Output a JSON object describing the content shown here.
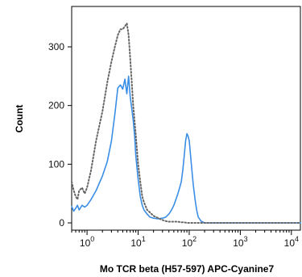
{
  "chart_data": {
    "type": "line",
    "title": "",
    "xlabel": "Mo TCR beta (H57-597) APC-Cyanine7",
    "ylabel": "Count",
    "x_scale": "log",
    "xlim": [
      0.5,
      15000
    ],
    "ylim": [
      0,
      360
    ],
    "x_ticks": [
      {
        "value": 1,
        "base": "10",
        "exp": "0"
      },
      {
        "value": 10,
        "base": "10",
        "exp": "1"
      },
      {
        "value": 100,
        "base": "10",
        "exp": "2"
      },
      {
        "value": 1000,
        "base": "10",
        "exp": "3"
      },
      {
        "value": 10000,
        "base": "10",
        "exp": "4"
      }
    ],
    "y_ticks": [
      "0",
      "100",
      "200",
      "300"
    ],
    "grid": false,
    "series": [
      {
        "style": "solid",
        "color": "#3a8ee6",
        "x": [
          0.5,
          0.55,
          0.6,
          0.65,
          0.7,
          0.8,
          0.9,
          1.0,
          1.2,
          1.5,
          2.0,
          2.5,
          3.0,
          3.5,
          4.0,
          4.5,
          5.0,
          5.5,
          6.0,
          6.5,
          7.0,
          7.5,
          8.0,
          8.5,
          9.0,
          10,
          11,
          12,
          13,
          15,
          17,
          20,
          25,
          30,
          35,
          40,
          45,
          50,
          55,
          60,
          65,
          70,
          75,
          80,
          85,
          90,
          95,
          100,
          105,
          110,
          115,
          120,
          130,
          140,
          150,
          170,
          200,
          250,
          15000
        ],
        "y": [
          28,
          20,
          25,
          30,
          22,
          30,
          27,
          30,
          40,
          55,
          80,
          105,
          140,
          185,
          230,
          235,
          228,
          245,
          220,
          250,
          215,
          195,
          175,
          150,
          115,
          75,
          45,
          30,
          22,
          15,
          10,
          8,
          7,
          8,
          10,
          15,
          22,
          30,
          40,
          50,
          60,
          70,
          90,
          115,
          140,
          152,
          148,
          140,
          120,
          100,
          82,
          65,
          40,
          22,
          10,
          3,
          0,
          0,
          0
        ]
      },
      {
        "style": "dotted",
        "color": "#666666",
        "x": [
          0.5,
          0.55,
          0.6,
          0.65,
          0.7,
          0.8,
          0.9,
          1.0,
          1.2,
          1.5,
          2.0,
          2.5,
          3.0,
          3.5,
          4.0,
          4.5,
          5.0,
          5.5,
          6.0,
          6.5,
          7.0,
          7.5,
          8.0,
          9.0,
          10,
          11,
          12,
          13,
          15,
          17,
          20,
          25,
          30,
          35,
          40,
          50,
          60,
          70,
          80,
          90,
          100,
          110,
          120,
          15000
        ],
        "y": [
          70,
          55,
          45,
          40,
          55,
          60,
          50,
          60,
          90,
          140,
          190,
          240,
          275,
          300,
          320,
          330,
          330,
          335,
          340,
          320,
          280,
          240,
          200,
          150,
          100,
          70,
          45,
          35,
          22,
          18,
          12,
          8,
          5,
          3,
          2,
          2,
          2,
          1,
          1,
          0,
          0,
          0,
          0,
          0
        ]
      }
    ]
  }
}
